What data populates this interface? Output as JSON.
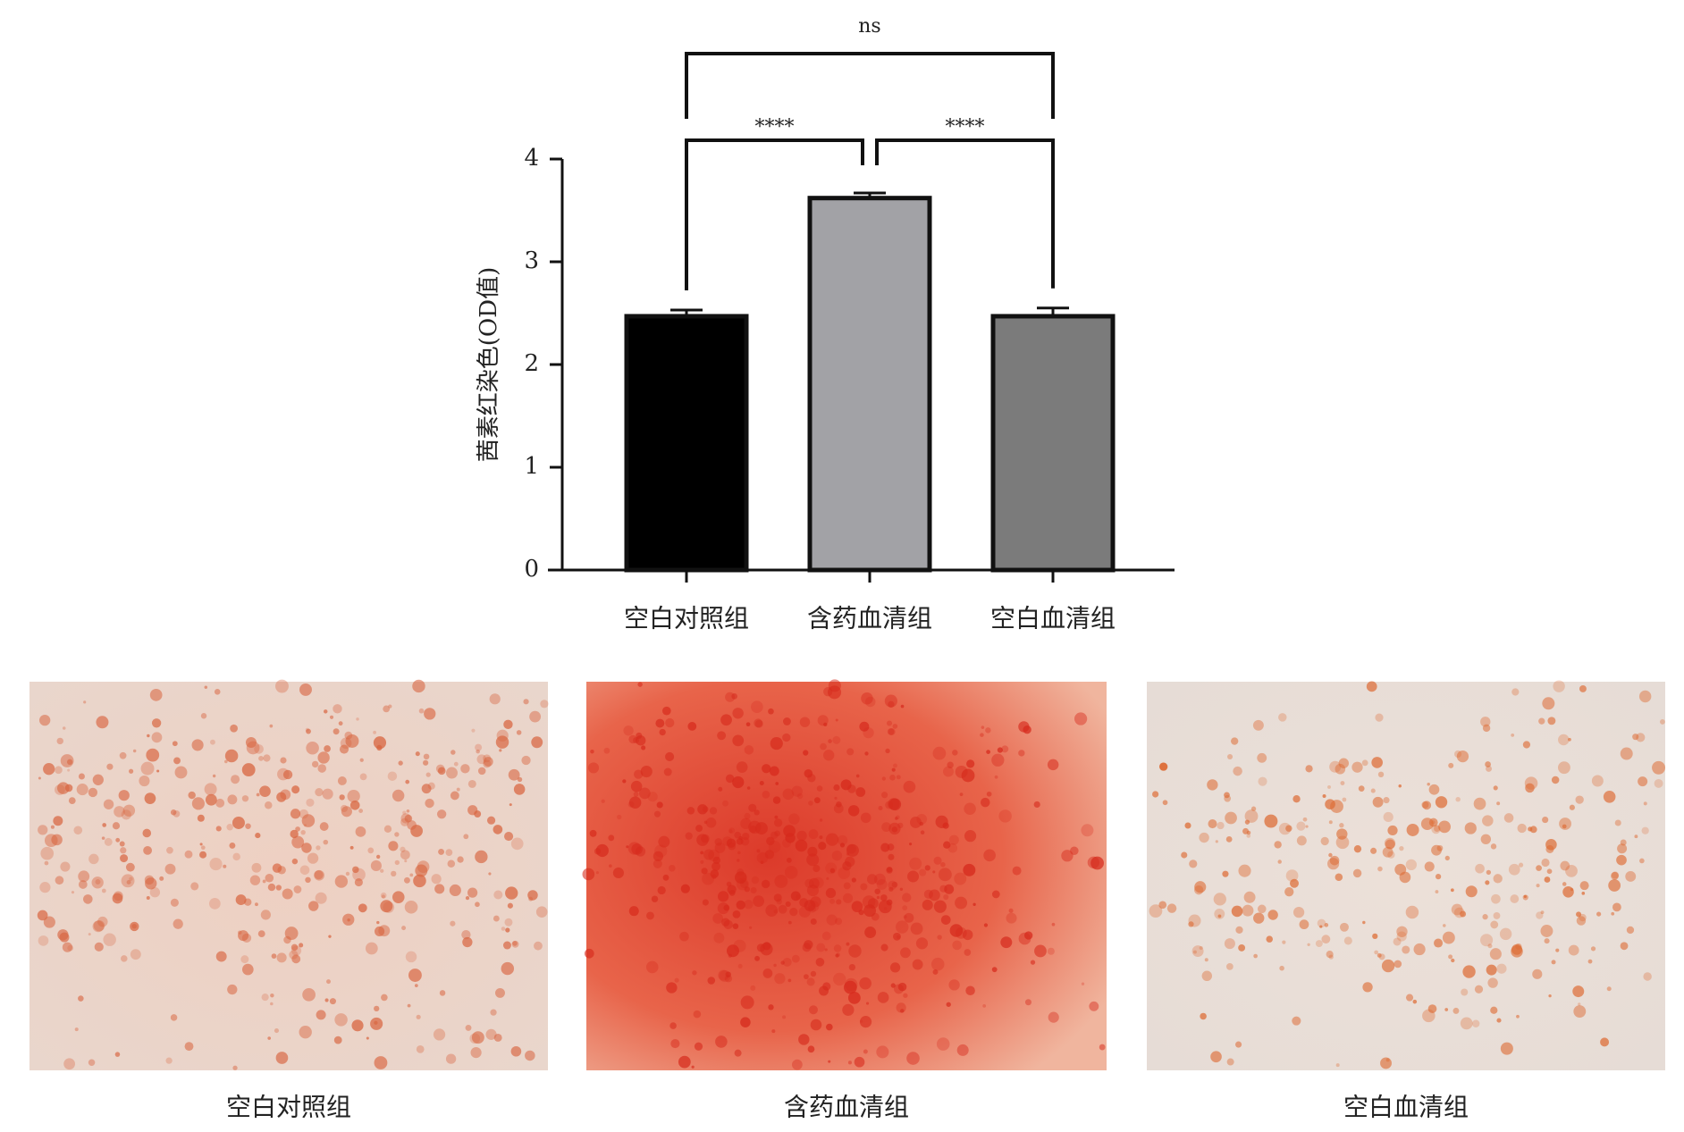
{
  "chart_data": {
    "type": "bar",
    "y_label": "茜素红染色(OD值)",
    "categories": [
      "空白对照组",
      "含药血清组",
      "空白血清组"
    ],
    "values": [
      2.47,
      3.62,
      2.47
    ],
    "errors": [
      0.06,
      0.05,
      0.08
    ],
    "colors": [
      "#000000",
      "#a2a2a6",
      "#7b7b7b"
    ],
    "ylim": [
      0,
      4
    ],
    "yticks": [
      0,
      1,
      2,
      3,
      4
    ],
    "annotations": [
      {
        "text": "****",
        "from": 0,
        "to": 1
      },
      {
        "text": "****",
        "from": 1,
        "to": 2
      },
      {
        "text": "ns",
        "from": 0,
        "to": 2
      }
    ]
  }
}
